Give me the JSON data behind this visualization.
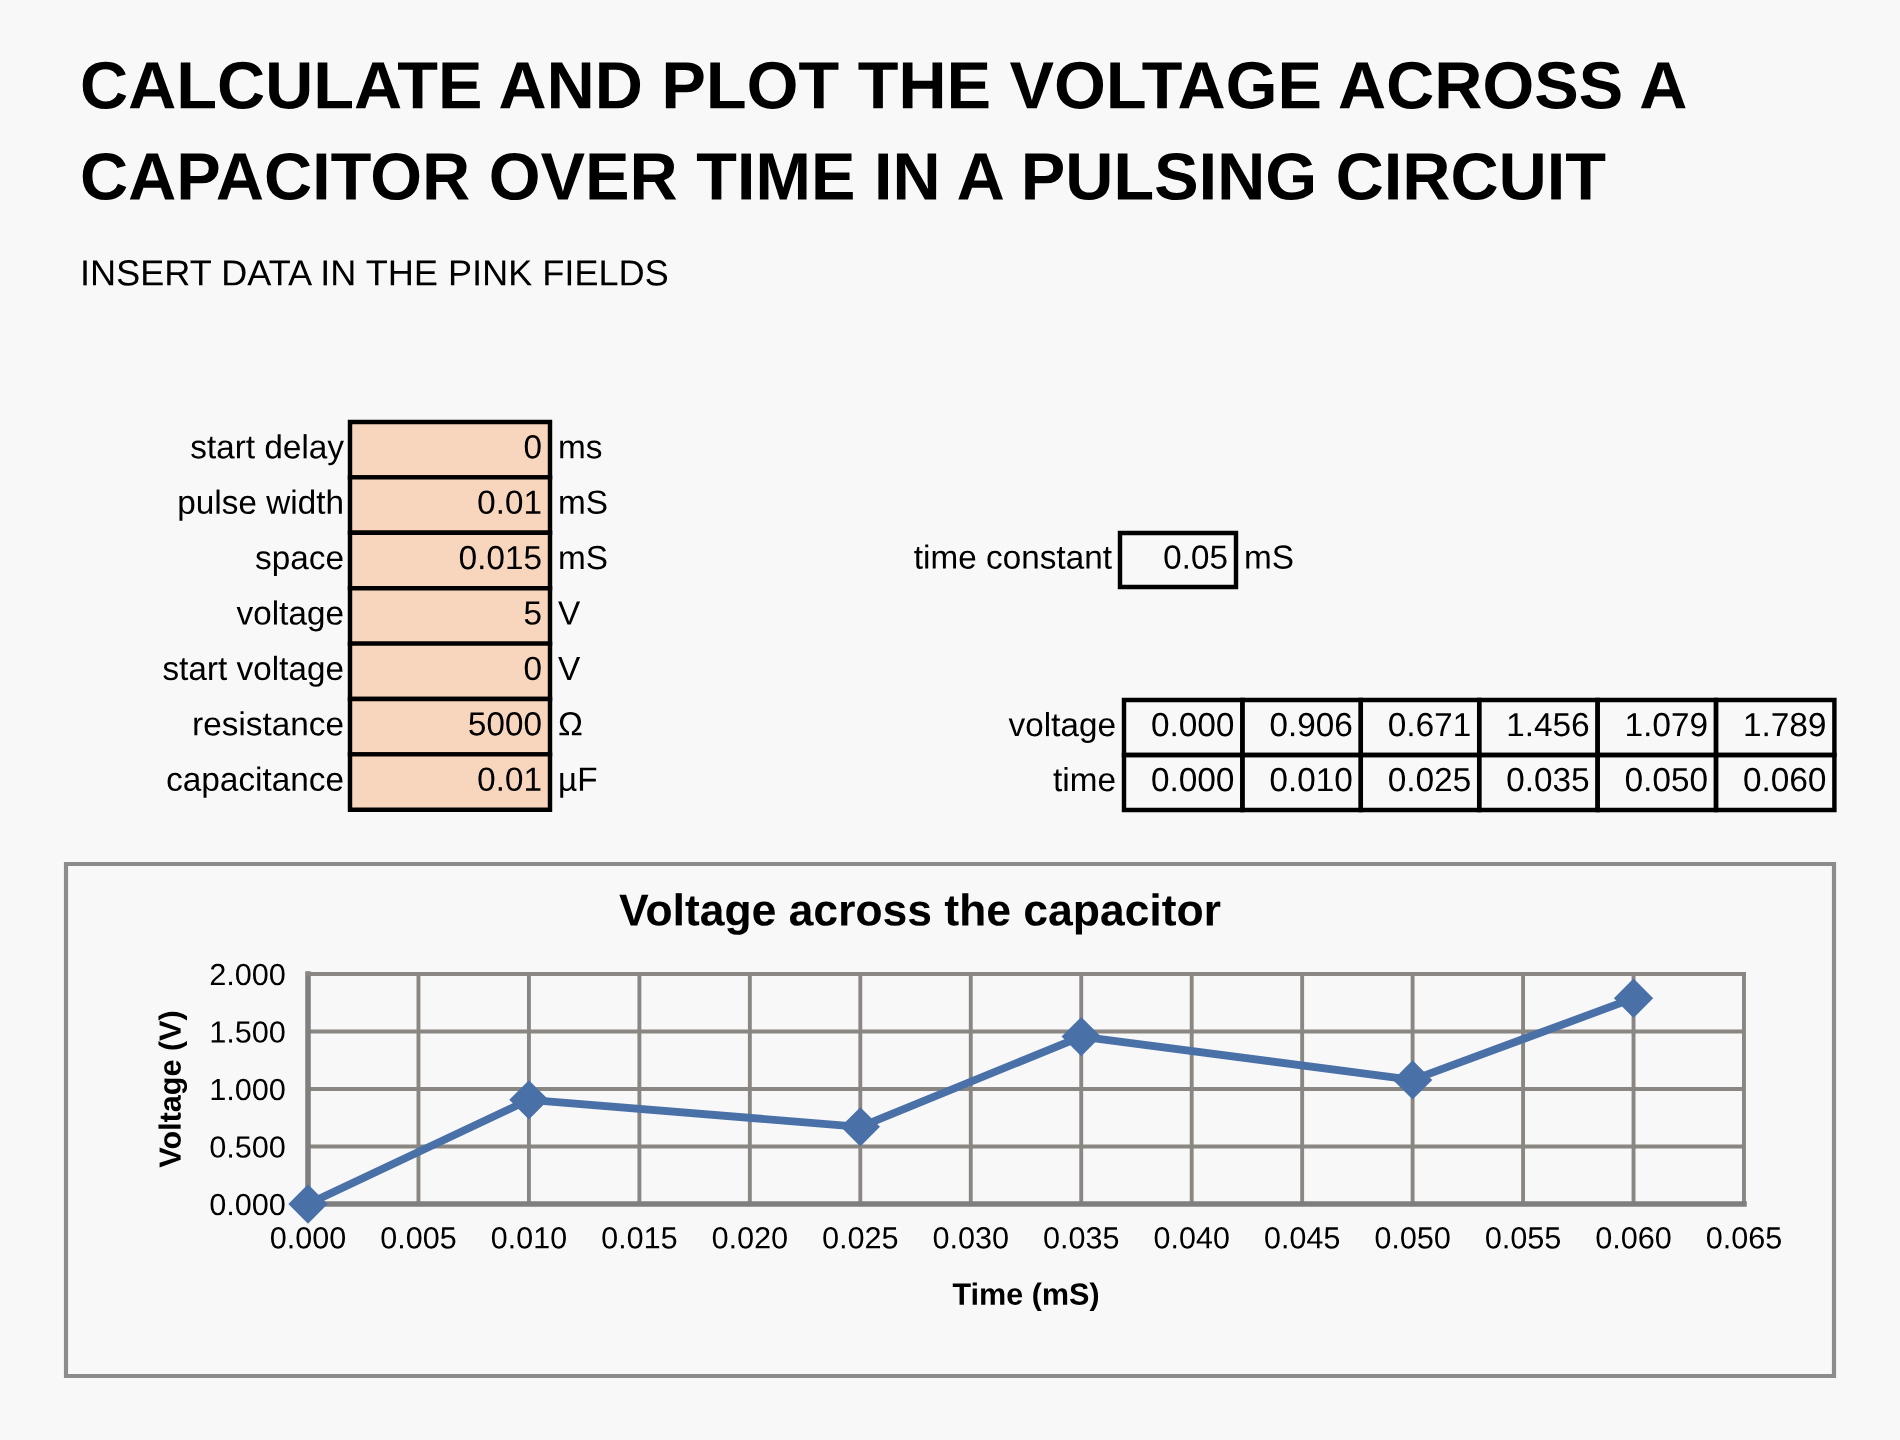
{
  "chart_data": [
    {
      "type": "other",
      "title": "CALCULATE AND PLOT THE VOLTAGE ACROSS A CAPACITOR OVER TIME IN A PULSING CIRCUIT",
      "subtitle": "INSERT DATA IN THE PINK FIELDS",
      "color": "#f8d6bd",
      "annotations": [
        "start delay",
        "0",
        "ms",
        "pulse width",
        "0.01",
        "mS",
        "space",
        "0.015",
        "mS",
        "voltage",
        "5",
        "V",
        "start voltage",
        "0",
        "V",
        "resistance",
        "5000",
        "Ω",
        "capacitance",
        "0.01",
        "µF",
        "time constant",
        "0.05",
        "mS",
        "voltage",
        "0.000",
        "0.906",
        "0.671",
        "1.456",
        "1.079",
        "1.789",
        "time",
        "0.000",
        "0.010",
        "0.025",
        "0.035",
        "0.050",
        "0.060"
      ]
    },
    {
      "type": "line",
      "title": "Voltage across the capacitor",
      "xlabel": "Time (mS)",
      "ylabel": "Voltage (V)",
      "x": [
        0,
        0.01,
        0.025,
        0.035,
        0.05,
        0.06
      ],
      "series": [
        {
          "color": "#4a70a8",
          "values": [
            0,
            0.906,
            0.671,
            1.456,
            1.079,
            1.789
          ]
        }
      ],
      "marker": "diamond",
      "line_style": "solid",
      "grid": true,
      "xlim": [
        0,
        0.065
      ],
      "xticks": [
        {
          "value": 0,
          "label": "0.000"
        },
        {
          "value": 0.005,
          "label": "0.005"
        },
        {
          "value": 0.01,
          "label": "0.010"
        },
        {
          "value": 0.015,
          "label": "0.015"
        },
        {
          "value": 0.02,
          "label": "0.020"
        },
        {
          "value": 0.025,
          "label": "0.025"
        },
        {
          "value": 0.03,
          "label": "0.030"
        },
        {
          "value": 0.035,
          "label": "0.035"
        },
        {
          "value": 0.04,
          "label": "0.040"
        },
        {
          "value": 0.045,
          "label": "0.045"
        },
        {
          "value": 0.05,
          "label": "0.050"
        },
        {
          "value": 0.055,
          "label": "0.055"
        },
        {
          "value": 0.06,
          "label": "0.060"
        },
        {
          "value": 0.065,
          "label": "0.065"
        }
      ],
      "ylim": [
        0,
        2
      ],
      "yticks": [
        {
          "value": 0,
          "label": "0.000"
        },
        {
          "value": 0.5,
          "label": "0.500"
        },
        {
          "value": 1,
          "label": "1.000"
        },
        {
          "value": 1.5,
          "label": "1.500"
        },
        {
          "value": 2,
          "label": "2.000"
        }
      ]
    }
  ]
}
